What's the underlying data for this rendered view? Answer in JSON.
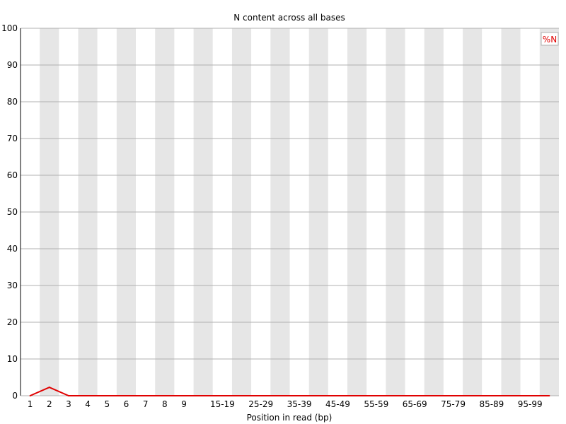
{
  "chart_data": {
    "type": "line",
    "title": "N content across all bases",
    "xlabel": "Position in read (bp)",
    "ylabel": "",
    "ylim": [
      0,
      100
    ],
    "yticks": [
      0,
      10,
      20,
      30,
      40,
      50,
      60,
      70,
      80,
      90,
      100
    ],
    "grid": true,
    "legend_position": "top-right",
    "categories": [
      "1",
      "2",
      "3",
      "4",
      "5",
      "6",
      "7",
      "8",
      "9",
      "",
      "15-19",
      "",
      "25-29",
      "",
      "35-39",
      "",
      "45-49",
      "",
      "55-59",
      "",
      "65-69",
      "",
      "75-79",
      "",
      "85-89",
      "",
      "95-99",
      ""
    ],
    "series": [
      {
        "name": "%N",
        "color": "#e00000",
        "values": [
          0,
          2.3,
          0,
          0,
          0,
          0,
          0,
          0,
          0,
          0,
          0,
          0,
          0,
          0,
          0,
          0,
          0,
          0,
          0,
          0,
          0,
          0,
          0,
          0,
          0,
          0,
          0,
          0
        ]
      }
    ],
    "band_colors": [
      "#ffffff",
      "#e6e6e6"
    ],
    "gridline_color": "#b0b0b0"
  }
}
